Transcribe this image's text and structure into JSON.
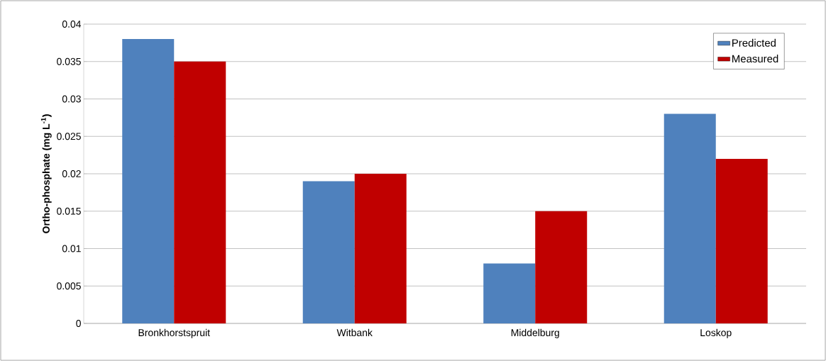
{
  "chart_data": {
    "type": "bar",
    "ylabel": "Ortho-phosphate (mg L$^{-1}$)",
    "categories": [
      "Bronkhorstspruit",
      "Witbank",
      "Middelburg",
      "Loskop"
    ],
    "series": [
      {
        "name": "Predicted",
        "color": "#4f81bd",
        "values": [
          0.038,
          0.019,
          0.008,
          0.028
        ]
      },
      {
        "name": "Measured",
        "color": "#c00000",
        "values": [
          0.035,
          0.02,
          0.015,
          0.022
        ]
      }
    ],
    "ylim": [
      0,
      0.04
    ],
    "yticks": [
      0,
      0.005,
      0.01,
      0.015,
      0.02,
      0.025,
      0.03,
      0.035,
      0.04
    ],
    "grid": "y",
    "legend": "top right"
  }
}
